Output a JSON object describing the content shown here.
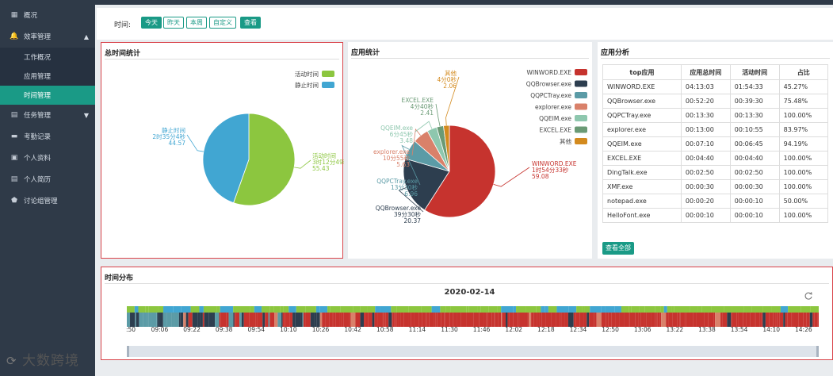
{
  "sidebar": {
    "items": [
      {
        "label": "概况",
        "icon": "dashboard-icon",
        "glyph": "▦"
      },
      {
        "label": "效率管理",
        "icon": "bell-icon",
        "glyph": "🔔",
        "caret": "▲"
      },
      {
        "label": "任务管理",
        "icon": "calendar-icon",
        "glyph": "▤",
        "caret": "▼"
      },
      {
        "label": "考勤记录",
        "icon": "car-icon",
        "glyph": "▬"
      },
      {
        "label": "个人资料",
        "icon": "id-card-icon",
        "glyph": "▣"
      },
      {
        "label": "个人简历",
        "icon": "document-icon",
        "glyph": "▤"
      },
      {
        "label": "讨论组管理",
        "icon": "shield-icon",
        "glyph": "⬟"
      }
    ],
    "subitems": [
      {
        "label": "工作概况"
      },
      {
        "label": "应用管理"
      },
      {
        "label": "时间管理",
        "active": true
      }
    ]
  },
  "filter": {
    "label": "时间:",
    "buttons": [
      "今天",
      "昨天",
      "本周",
      "自定义"
    ],
    "active": "今天",
    "query": "查看"
  },
  "total_panel": {
    "title": "总时间统计",
    "chart_data": {
      "type": "pie",
      "slices": [
        {
          "name": "活动时间",
          "duration": "3时12分49秒",
          "percent": 55.43,
          "color": "#8cc63f"
        },
        {
          "name": "静止时间",
          "duration": "2时35分4秒",
          "percent": 44.57,
          "color": "#41a6d2"
        }
      ]
    }
  },
  "app_panel": {
    "title": "应用统计",
    "chart_data": {
      "type": "pie",
      "slices": [
        {
          "name": "WINWORD.EXE",
          "duration": "1时54分33秒",
          "percent": 59.08,
          "color": "#c6332e"
        },
        {
          "name": "QQBrowser.exe",
          "duration": "39分30秒",
          "percent": 20.37,
          "color": "#2d3e4f"
        },
        {
          "name": "QQPCTray.exe",
          "duration": "13分30秒",
          "percent": 6.96,
          "color": "#5b9ba6"
        },
        {
          "name": "explorer.exe",
          "duration": "10分55秒",
          "percent": 5.63,
          "color": "#d9816a"
        },
        {
          "name": "QQEIM.exe",
          "duration": "6分45秒",
          "percent": 3.48,
          "color": "#8ec7ae"
        },
        {
          "name": "EXCEL.EXE",
          "duration": "4分40秒",
          "percent": 2.41,
          "color": "#6a9a75"
        },
        {
          "name": "其他",
          "duration": "4分0秒",
          "percent": 2.06,
          "color": "#d38a1e"
        }
      ]
    }
  },
  "analysis_panel": {
    "title": "应用分析",
    "columns": [
      "top应用",
      "应用总时间",
      "活动时间",
      "占比"
    ],
    "rows": [
      [
        "WINWORD.EXE",
        "04:13:03",
        "01:54:33",
        "45.27%"
      ],
      [
        "QQBrowser.exe",
        "00:52:20",
        "00:39:30",
        "75.48%"
      ],
      [
        "QQPCTray.exe",
        "00:13:30",
        "00:13:30",
        "100.00%"
      ],
      [
        "explorer.exe",
        "00:13:00",
        "00:10:55",
        "83.97%"
      ],
      [
        "QQEIM.exe",
        "00:07:10",
        "00:06:45",
        "94.19%"
      ],
      [
        "EXCEL.EXE",
        "00:04:40",
        "00:04:40",
        "100.00%"
      ],
      [
        "DingTalk.exe",
        "00:02:50",
        "00:02:50",
        "100.00%"
      ],
      [
        "XMF.exe",
        "00:00:30",
        "00:00:30",
        "100.00%"
      ],
      [
        "notepad.exe",
        "00:00:20",
        "00:00:10",
        "50.00%"
      ],
      [
        "HelloFont.exe",
        "00:00:10",
        "00:00:10",
        "100.00%"
      ]
    ],
    "view_all": "查看全部"
  },
  "timeline_panel": {
    "title": "时间分布",
    "date": "2020-02-14",
    "ticks": [
      ":50",
      "09:06",
      "09:22",
      "09:38",
      "09:54",
      "10:10",
      "10:26",
      "10:42",
      "10:58",
      "11:14",
      "11:30",
      "11:46",
      "12:02",
      "12:18",
      "12:34",
      "12:50",
      "13:06",
      "13:22",
      "13:38",
      "13:54",
      "14:10",
      "14:26"
    ],
    "colors": {
      "active": "#8cc63f",
      "idle": "#41a6d2",
      "word": "#c6332e",
      "browser": "#2d3e4f",
      "tray": "#5b9ba6",
      "explorer": "#d9816a"
    }
  },
  "watermark": "大数跨境"
}
